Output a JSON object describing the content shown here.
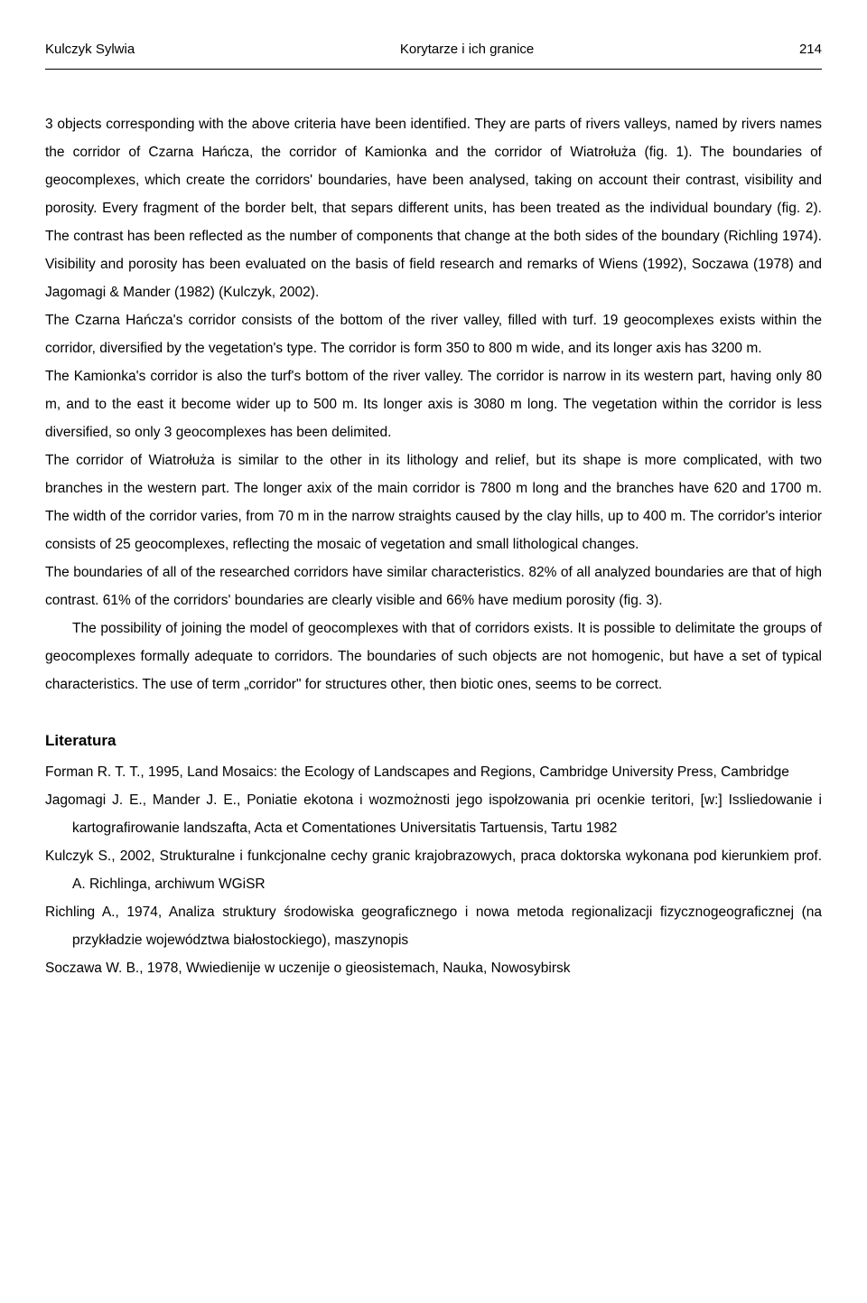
{
  "header": {
    "author": "Kulczyk Sylwia",
    "title": "Korytarze i ich granice",
    "page": "214"
  },
  "paragraphs": {
    "p1": "3 objects corresponding with the above criteria have been identified. They are parts of rivers valleys, named by rivers names the corridor of Czarna Hańcza, the corridor of Kamionka and the corridor of Wiatrołuża (fig. 1). The boundaries of geocomplexes, which create the corridors' boundaries, have been analysed, taking on account their contrast, visibility and porosity. Every fragment of the border belt, that separs different units, has been treated as the individual boundary (fig. 2). The contrast has been reflected as the number of components that change at the both sides of the boundary (Richling 1974). Visibility and porosity has been evaluated on the basis of field research and remarks of Wiens (1992), Soczawa (1978) and Jagomagi & Mander (1982) (Kulczyk, 2002).",
    "p2": "The Czarna Hańcza's corridor consists of the bottom of the river valley, filled with turf. 19 geocomplexes exists within the corridor, diversified by the vegetation's type. The corridor is form 350 to 800 m wide, and its longer axis has 3200 m.",
    "p3": "The Kamionka's corridor is also the turf's bottom of the river valley. The corridor is narrow in its western part, having only 80 m, and to the east it become wider up to 500 m. Its longer axis is 3080 m long. The vegetation within the corridor is less diversified, so only 3 geocomplexes has been delimited.",
    "p4": "The corridor of Wiatrołuża is similar to the other in its lithology and relief, but its shape is more complicated, with two branches in the western part. The longer axix of the main corridor is 7800 m long and the branches have 620 and 1700 m. The width of the corridor varies, from 70 m in the narrow straights caused by the clay hills, up to 400 m. The corridor's interior consists of 25 geocomplexes, reflecting the mosaic of vegetation and small lithological changes.",
    "p5": "The boundaries of all of the researched corridors have similar characteristics. 82% of all analyzed boundaries are that of high contrast. 61% of the corridors' boundaries are clearly visible and 66% have medium porosity (fig. 3).",
    "p6": "The possibility of joining the model of geocomplexes with that of corridors exists. It is possible to delimitate the groups of geocomplexes formally adequate to corridors. The boundaries of such objects are not homogenic, but have a set of typical characteristics. The use of term „corridor\" for structures other, then biotic ones, seems to be correct."
  },
  "literature": {
    "heading": "Literatura",
    "refs": {
      "r1": "Forman R. T. T., 1995, Land Mosaics: the Ecology of Landscapes and Regions, Cambridge University Press, Cambridge",
      "r2": "Jagomagi J. E., Mander J. E., Poniatie ekotona i wozmożnosti jego ispołzowania pri ocenkie teritori, [w:] Issliedowanie i kartografirowanie landszafta, Acta et Comentationes Universitatis Tartuensis, Tartu 1982",
      "r3": "Kulczyk S., 2002, Strukturalne i funkcjonalne cechy granic krajobrazowych, praca doktorska wykonana pod kierunkiem prof. A. Richlinga, archiwum WGiSR",
      "r4": "Richling A., 1974, Analiza struktury środowiska geograficznego i nowa metoda regionalizacji fizycznogeograficznej (na przykładzie województwa białostockiego), maszynopis",
      "r5": "Soczawa W. B., 1978, Wwiedienije w uczenije o gieosistemach, Nauka, Nowosybirsk"
    }
  }
}
